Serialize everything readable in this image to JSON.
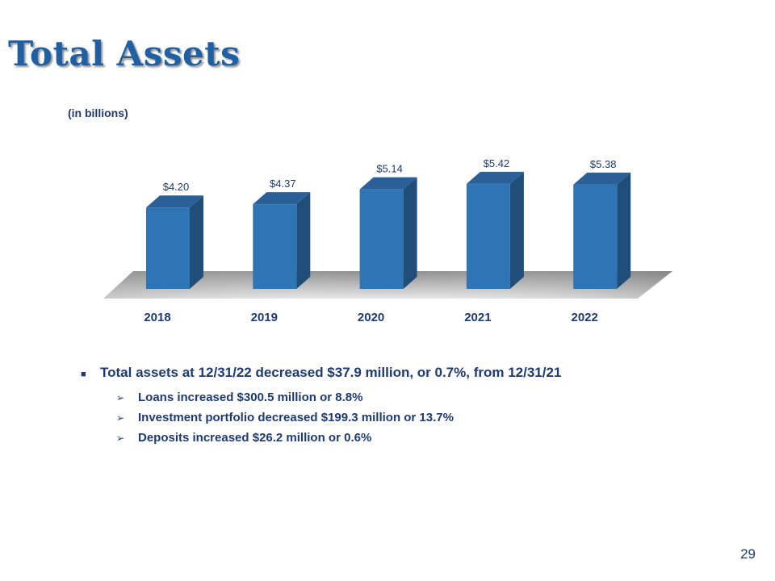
{
  "slide": {
    "title": "Total Assets",
    "page_number": "29"
  },
  "chart_data": {
    "type": "bar",
    "title": "Total Assets",
    "subtitle": "(in billions)",
    "categories": [
      "2018",
      "2019",
      "2020",
      "2021",
      "2022"
    ],
    "values": [
      4.2,
      4.37,
      5.14,
      5.42,
      5.38
    ],
    "data_labels": [
      "$4.20",
      "$4.37",
      "$5.14",
      "$5.42",
      "$5.38"
    ],
    "xlabel": "",
    "ylabel": "",
    "ylim": [
      0,
      6
    ],
    "grid": false,
    "legend": "none",
    "three_d": true,
    "colors": {
      "bar_front": "#2e75b6",
      "bar_side": "#1f4e79",
      "bar_top": "#2a5f98",
      "floor_light": "#e6e6e6",
      "floor_dark": "#8c8c8c",
      "label_text": "#1f3a70"
    }
  },
  "summary": {
    "main": "Total assets at 12/31/22 decreased $37.9 million,  or 0.7%, from 12/31/21",
    "details": [
      "Loans increased $300.5 million or 8.8%",
      "Investment portfolio decreased $199.3 million or 13.7%",
      "Deposits increased $26.2 million or 0.6%"
    ]
  },
  "icons": {
    "main_bullet": "square-bullet-icon",
    "sub_bullet": "arrow-bullet-icon"
  }
}
